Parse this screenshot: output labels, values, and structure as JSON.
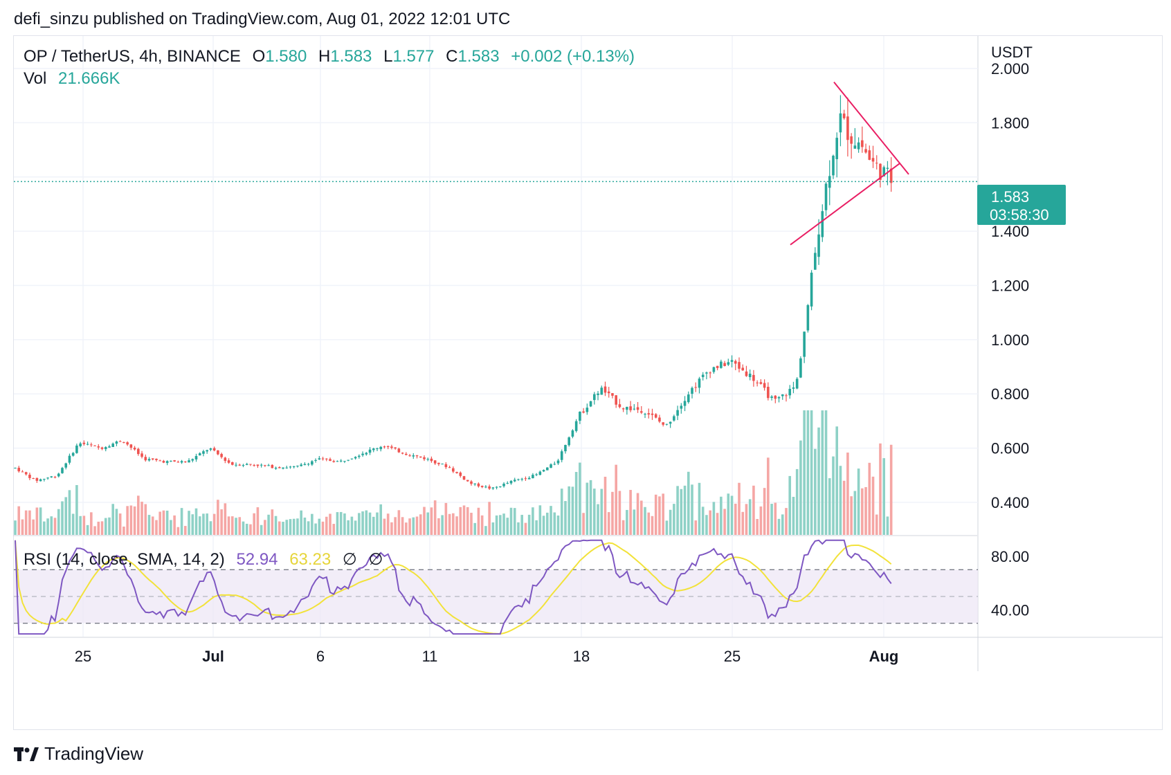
{
  "header": "defi_sinzu published on TradingView.com, Aug 01, 2022 12:01 UTC",
  "legend": {
    "symbol": "OP / TetherUS, 4h, BINANCE",
    "o_label": "O",
    "o_value": "1.580",
    "h_label": "H",
    "h_value": "1.583",
    "l_label": "L",
    "l_value": "1.577",
    "c_label": "C",
    "c_value": "1.583",
    "change": "+0.002 (+0.13%)",
    "vol_label": "Vol",
    "vol_value": "21.666K"
  },
  "price_axis": {
    "unit": "USDT",
    "ticks": [
      "2.000",
      "1.800",
      "1.400",
      "1.200",
      "1.000",
      "0.800",
      "0.600",
      "0.400"
    ],
    "current_price": "1.583",
    "countdown": "03:58:30"
  },
  "rsi": {
    "label": "RSI (14, close, SMA, 14, 2)",
    "rsi_value": "52.94",
    "sma_value": "63.23",
    "extra1": "∅",
    "extra2": "∅",
    "ticks": [
      "80.00",
      "40.00"
    ]
  },
  "time_axis": {
    "ticks": [
      "25",
      "Jul",
      "6",
      "11",
      "18",
      "25",
      "Aug"
    ]
  },
  "branding": {
    "logo_text": "TradingView"
  },
  "colors": {
    "up": "#26a69a",
    "down": "#ef5350",
    "vol_up": "#8ed1c6",
    "vol_down": "#f5a6a4",
    "rsi": "#7e57c2",
    "rsi_sma": "#f2e23a",
    "trendline": "#e91e63",
    "price_line": "#26a69a"
  },
  "chart_data": {
    "type": "candlestick",
    "interval": "4h",
    "symbol": "OP / TetherUS",
    "exchange": "BINANCE",
    "ylabel": "USDT",
    "ylim": [
      0.28,
      2.12
    ],
    "x_ticks": [
      "25",
      "Jul",
      "6",
      "11",
      "18",
      "25",
      "Aug"
    ],
    "close_path": [
      [
        "Jun 22",
        0.53
      ],
      [
        "Jun 23",
        0.48
      ],
      [
        "Jun 24",
        0.5
      ],
      [
        "Jun 25",
        0.62
      ],
      [
        "Jun 26",
        0.6
      ],
      [
        "Jun 27",
        0.63
      ],
      [
        "Jun 28",
        0.56
      ],
      [
        "Jun 29",
        0.55
      ],
      [
        "Jun 30",
        0.55
      ],
      [
        "Jul 1",
        0.6
      ],
      [
        "Jul 2",
        0.54
      ],
      [
        "Jul 3",
        0.54
      ],
      [
        "Jul 4",
        0.53
      ],
      [
        "Jul 5",
        0.53
      ],
      [
        "Jul 6",
        0.56
      ],
      [
        "Jul 7",
        0.55
      ],
      [
        "Jul 8",
        0.58
      ],
      [
        "Jul 9",
        0.61
      ],
      [
        "Jul 10",
        0.58
      ],
      [
        "Jul 11",
        0.56
      ],
      [
        "Jul 12",
        0.53
      ],
      [
        "Jul 13",
        0.47
      ],
      [
        "Jul 14",
        0.45
      ],
      [
        "Jul 15",
        0.48
      ],
      [
        "Jul 16",
        0.5
      ],
      [
        "Jul 17",
        0.55
      ],
      [
        "Jul 18",
        0.72
      ],
      [
        "Jul 19",
        0.82
      ],
      [
        "Jul 20",
        0.75
      ],
      [
        "Jul 21",
        0.74
      ],
      [
        "Jul 22",
        0.68
      ],
      [
        "Jul 23",
        0.8
      ],
      [
        "Jul 24",
        0.89
      ],
      [
        "Jul 25",
        0.92
      ],
      [
        "Jul 26",
        0.86
      ],
      [
        "Jul 27",
        0.77
      ],
      [
        "Jul 28",
        0.83
      ],
      [
        "Jul 28 12:00",
        1.1
      ],
      [
        "Jul 29",
        1.4
      ],
      [
        "Jul 29 12:00",
        1.62
      ],
      [
        "Jul 30",
        1.82
      ],
      [
        "Jul 30 12:00",
        1.75
      ],
      [
        "Jul 31",
        1.72
      ],
      [
        "Jul 31 12:00",
        1.65
      ],
      [
        "Aug 1 12:00",
        1.583
      ]
    ],
    "rsi_ylim": [
      20,
      95
    ],
    "rsi_levels": [
      70,
      50,
      30
    ],
    "last_ohlc": {
      "open": 1.58,
      "high": 1.583,
      "low": 1.577,
      "close": 1.583
    }
  }
}
